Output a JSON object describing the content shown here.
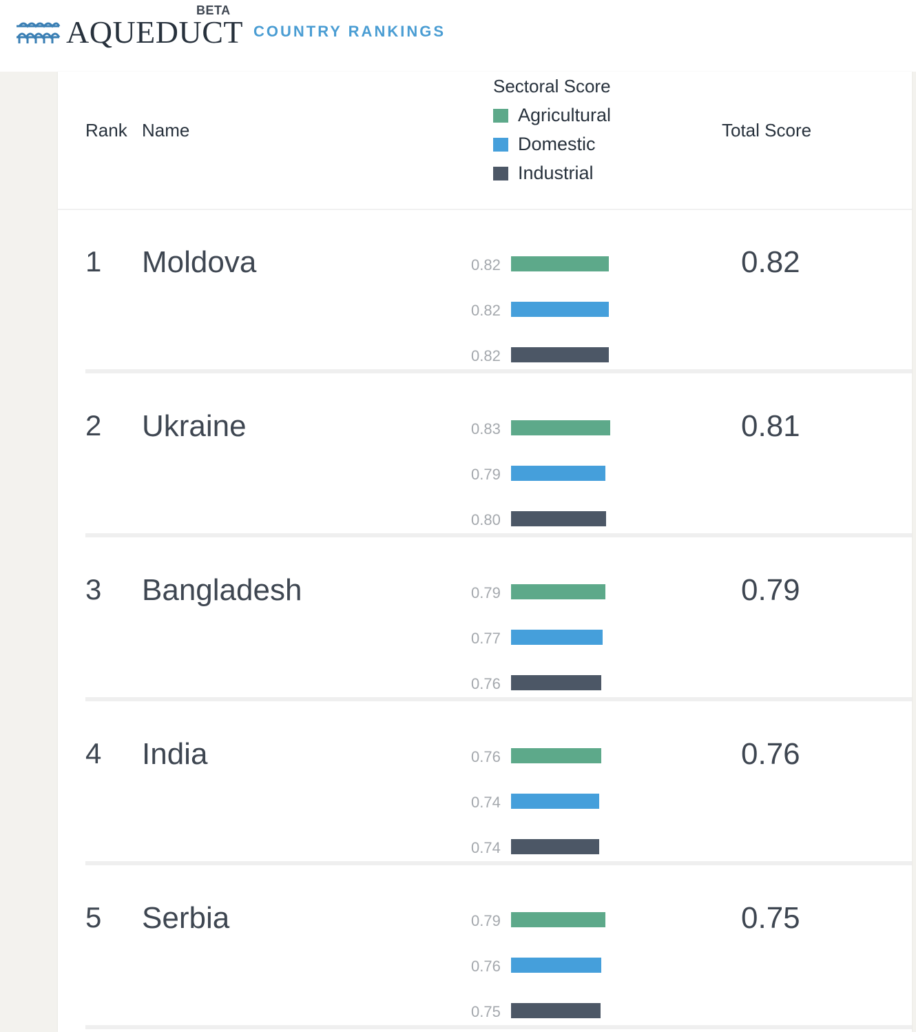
{
  "header": {
    "logo_text": "AQUEDUCT",
    "beta": "BETA",
    "title": "COUNTRY RANKINGS"
  },
  "table": {
    "rank_label": "Rank",
    "name_label": "Name",
    "sectoral_label": "Sectoral Score",
    "total_label": "Total Score",
    "legend": [
      {
        "label": "Agricultural",
        "color": "#5da98a"
      },
      {
        "label": "Domestic",
        "color": "#459fdb"
      },
      {
        "label": "Industrial",
        "color": "#4c5766"
      }
    ],
    "rows": [
      {
        "rank": "1",
        "name": "Moldova",
        "total": "0.82",
        "scores": [
          {
            "label": "0.82",
            "value": 0.82
          },
          {
            "label": "0.82",
            "value": 0.82
          },
          {
            "label": "0.82",
            "value": 0.82
          }
        ]
      },
      {
        "rank": "2",
        "name": "Ukraine",
        "total": "0.81",
        "scores": [
          {
            "label": "0.83",
            "value": 0.83
          },
          {
            "label": "0.79",
            "value": 0.79
          },
          {
            "label": "0.80",
            "value": 0.8
          }
        ]
      },
      {
        "rank": "3",
        "name": "Bangladesh",
        "total": "0.79",
        "scores": [
          {
            "label": "0.79",
            "value": 0.79
          },
          {
            "label": "0.77",
            "value": 0.77
          },
          {
            "label": "0.76",
            "value": 0.76
          }
        ]
      },
      {
        "rank": "4",
        "name": "India",
        "total": "0.76",
        "scores": [
          {
            "label": "0.76",
            "value": 0.76
          },
          {
            "label": "0.74",
            "value": 0.74
          },
          {
            "label": "0.74",
            "value": 0.74
          }
        ]
      },
      {
        "rank": "5",
        "name": "Serbia",
        "total": "0.75",
        "scores": [
          {
            "label": "0.79",
            "value": 0.79
          },
          {
            "label": "0.76",
            "value": 0.76
          },
          {
            "label": "0.75",
            "value": 0.75
          }
        ]
      }
    ]
  }
}
